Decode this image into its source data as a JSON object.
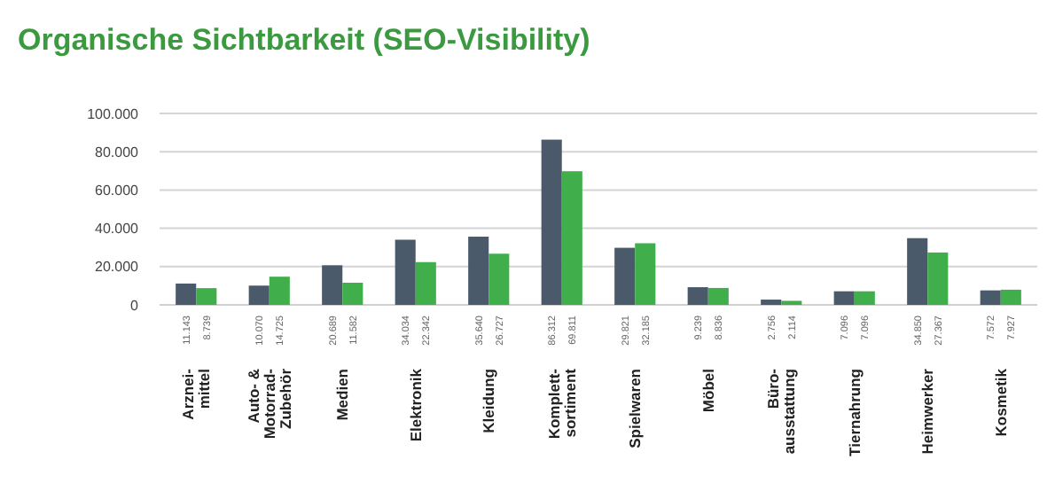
{
  "chart_data": {
    "type": "bar",
    "title": "Organische Sichtbarkeit (SEO-Visibility)",
    "categories": [
      "Arznei-\nmittel",
      "Auto- &\nMotorrad-\nZubehör",
      "Medien",
      "Elektronik",
      "Kleidung",
      "Komplett-\nsortiment",
      "Spielwaren",
      "Möbel",
      "Büro-\nausstattung",
      "Tiernahrung",
      "Heimwerker",
      "Kosmetik"
    ],
    "series": [
      {
        "color": "#4b5a6a",
        "values": [
          11143,
          10070,
          20689,
          34034,
          35640,
          86312,
          29821,
          9239,
          2756,
          7096,
          34850,
          7572
        ],
        "value_labels": [
          "11.143",
          "10.070",
          "20.689",
          "34.034",
          "35.640",
          "86.312",
          "29.821",
          "9.239",
          "2.756",
          "7.096",
          "34.850",
          "7.572"
        ]
      },
      {
        "color": "#3fae4b",
        "values": [
          8739,
          14725,
          11582,
          22342,
          26727,
          69811,
          32185,
          8836,
          2114,
          7096,
          27367,
          7927
        ],
        "value_labels": [
          "8.739",
          "14.725",
          "11.582",
          "22.342",
          "26.727",
          "69.811",
          "32.185",
          "8.836",
          "2.114",
          "7.096",
          "27.367",
          "7.927"
        ]
      }
    ],
    "ylim": [
      0,
      100000
    ],
    "yticks": [
      {
        "value": 0,
        "label": "0"
      },
      {
        "value": 20000,
        "label": "20.000"
      },
      {
        "value": 40000,
        "label": "40.000"
      },
      {
        "value": 60000,
        "label": "60.000"
      },
      {
        "value": 80000,
        "label": "80.000"
      },
      {
        "value": 100000,
        "label": "100.000"
      }
    ],
    "grid": "y"
  }
}
